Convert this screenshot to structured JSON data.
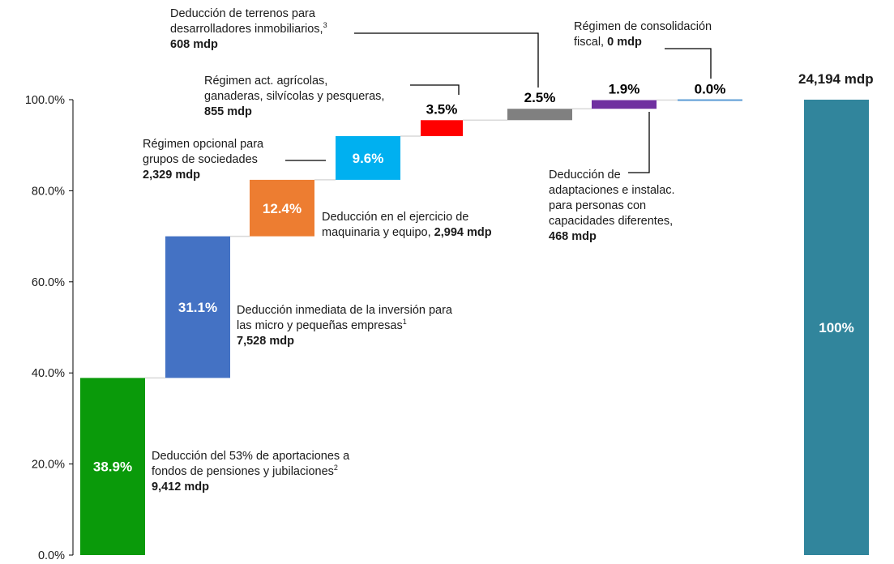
{
  "chart_data": {
    "type": "waterfall",
    "ylim": [
      0,
      100
    ],
    "y_ticks": [
      "0.0%",
      "20.0%",
      "40.0%",
      "60.0%",
      "80.0%",
      "100.0%"
    ],
    "y_tick_values": [
      0,
      20,
      40,
      60,
      80,
      100
    ],
    "colors": {
      "c1": "#0a9a0a",
      "c2": "#4472c4",
      "c3": "#ed7d31",
      "c4": "#00b0f0",
      "c5": "#ff0000",
      "c6": "#808080",
      "c7": "#7030a0",
      "c8": "#5b9bd5",
      "total": "#31859c",
      "connector": "#d9d9d9",
      "leader": "#000000"
    },
    "steps": [
      {
        "key": "c1",
        "value": 38.9,
        "label": "38.9%",
        "label_color": "#ffffff",
        "lines": [
          "Deducción del 53% de aportaciones a",
          "fondos de pensiones y jubilaciones"
        ],
        "sup": "2",
        "amount": "9,412 mdp"
      },
      {
        "key": "c2",
        "value": 31.1,
        "label": "31.1%",
        "label_color": "#ffffff",
        "lines": [
          "Deducción inmediata de la inversión para",
          "las micro y pequeñas empresas"
        ],
        "sup": "1",
        "amount": "7,528 mdp"
      },
      {
        "key": "c3",
        "value": 12.4,
        "label": "12.4%",
        "label_color": "#ffffff",
        "lines": [
          "Deducción en el ejercicio de",
          "maquinaria y equipo,"
        ],
        "sup": "",
        "amount": "2,994 mdp",
        "amount_inline": true
      },
      {
        "key": "c4",
        "value": 9.6,
        "label": "9.6%",
        "label_color": "#ffffff",
        "lines": [
          "Régimen opcional para",
          "grupos de sociedades"
        ],
        "sup": "",
        "amount": "2,329 mdp"
      },
      {
        "key": "c5",
        "value": 3.5,
        "label": "3.5%",
        "label_color": "#000000",
        "lines": [
          "Régimen act. agrícolas,",
          "ganaderas, silvícolas y pesqueras,"
        ],
        "sup": "",
        "amount": "855 mdp"
      },
      {
        "key": "c6",
        "value": 2.5,
        "label": "2.5%",
        "label_color": "#000000",
        "lines": [
          "Deducción de terrenos para",
          "desarrolladores inmobiliarios,"
        ],
        "sup": "3",
        "amount": "608 mdp"
      },
      {
        "key": "c7",
        "value": 1.9,
        "label": "1.9%",
        "label_color": "#000000",
        "lines": [
          "Deducción de",
          "adaptaciones e instalac.",
          "para personas con",
          "capacidades diferentes,"
        ],
        "sup": "",
        "amount": "468 mdp"
      },
      {
        "key": "c8",
        "value": 0.0,
        "label": "0.0%",
        "label_color": "#000000",
        "lines": [
          "Régimen de consolidación",
          "fiscal,"
        ],
        "sup": "",
        "amount": "0 mdp",
        "amount_inline": true
      }
    ],
    "total": {
      "value": 100,
      "label": "100%",
      "title": "24,194 mdp"
    }
  }
}
